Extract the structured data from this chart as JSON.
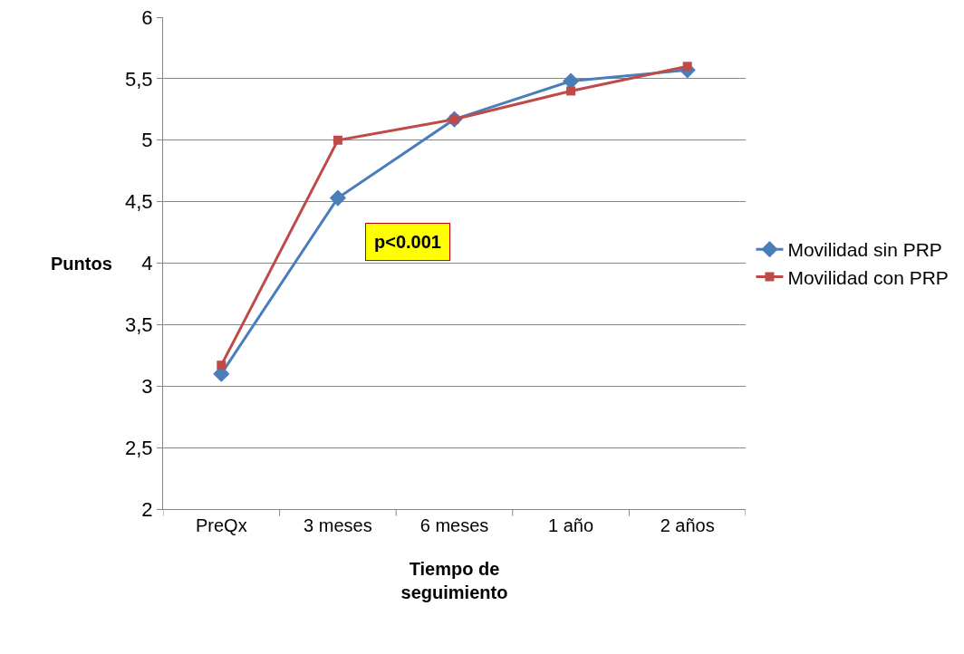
{
  "chart_data": {
    "type": "line",
    "xlabel": "Tiempo de\nseguimiento",
    "ylabel": "Puntos",
    "categories": [
      "PreQx",
      "3 meses",
      "6 meses",
      "1 año",
      "2 años"
    ],
    "series": [
      {
        "name": "Movilidad sin PRP",
        "color": "#4a7ebb",
        "marker": "diamond",
        "values": [
          3.1,
          4.53,
          5.17,
          5.48,
          5.57
        ]
      },
      {
        "name": "Movilidad con PRP",
        "color": "#be4b48",
        "marker": "square",
        "values": [
          3.17,
          5.0,
          5.17,
          5.4,
          5.6
        ]
      }
    ],
    "ylim": [
      2,
      6
    ],
    "yticks": [
      2,
      {
        "value": 2.5,
        "label": "2,5"
      },
      3,
      {
        "value": 3.5,
        "label": "3,5"
      },
      4,
      {
        "value": 4.5,
        "label": "4,5"
      },
      5,
      {
        "value": 5.5,
        "label": "5,5"
      },
      6
    ],
    "grid": "y",
    "legend": "right",
    "annotations": [
      "p<0.001"
    ]
  }
}
